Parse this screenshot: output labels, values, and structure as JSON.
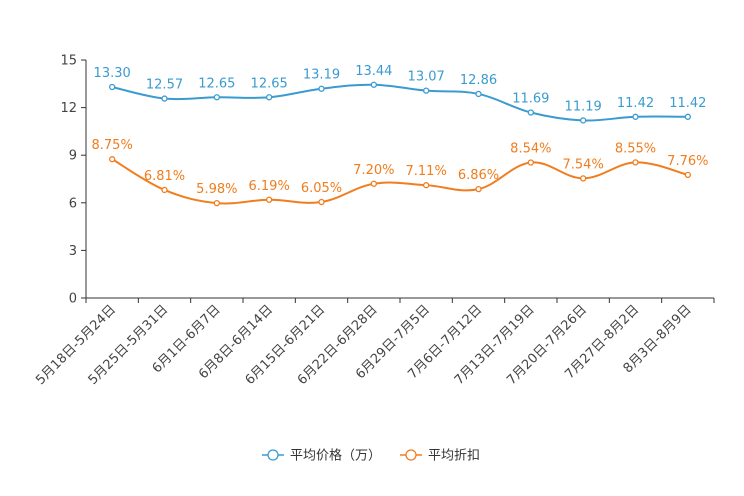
{
  "chart_data": {
    "type": "line",
    "title": "",
    "xlabel": "",
    "ylabel": "",
    "ylim": [
      0,
      15
    ],
    "yticks": [
      0,
      3,
      6,
      9,
      12,
      15
    ],
    "grid": false,
    "legend_position": "bottom-center",
    "categories": [
      "5月18日-5月24日",
      "5月25日-5月31日",
      "6月1日-6月7日",
      "6月8日-6月14日",
      "6月15日-6月21日",
      "6月22日-6月28日",
      "6月29日-7月5日",
      "7月6日-7月12日",
      "7月13日-7月19日",
      "7月20日-7月26日",
      "7月27日-8月2日",
      "8月3日-8月9日"
    ],
    "series": [
      {
        "name": "平均价格（万）",
        "color": "#3a9bd0",
        "values": [
          13.3,
          12.57,
          12.65,
          12.65,
          13.19,
          13.44,
          13.07,
          12.86,
          11.69,
          11.19,
          11.42,
          11.42
        ],
        "labels": [
          "13.30",
          "12.57",
          "12.65",
          "12.65",
          "13.19",
          "13.44",
          "13.07",
          "12.86",
          "11.69",
          "11.19",
          "11.42",
          "11.42"
        ]
      },
      {
        "name": "平均折扣",
        "color": "#f07d1e",
        "values": [
          8.75,
          6.81,
          5.98,
          6.19,
          6.05,
          7.2,
          7.11,
          6.86,
          8.54,
          7.54,
          8.55,
          7.76
        ],
        "labels": [
          "8.75%",
          "6.81%",
          "5.98%",
          "6.19%",
          "6.05%",
          "7.20%",
          "7.11%",
          "6.86%",
          "8.54%",
          "7.54%",
          "8.55%",
          "7.76%"
        ]
      }
    ]
  }
}
